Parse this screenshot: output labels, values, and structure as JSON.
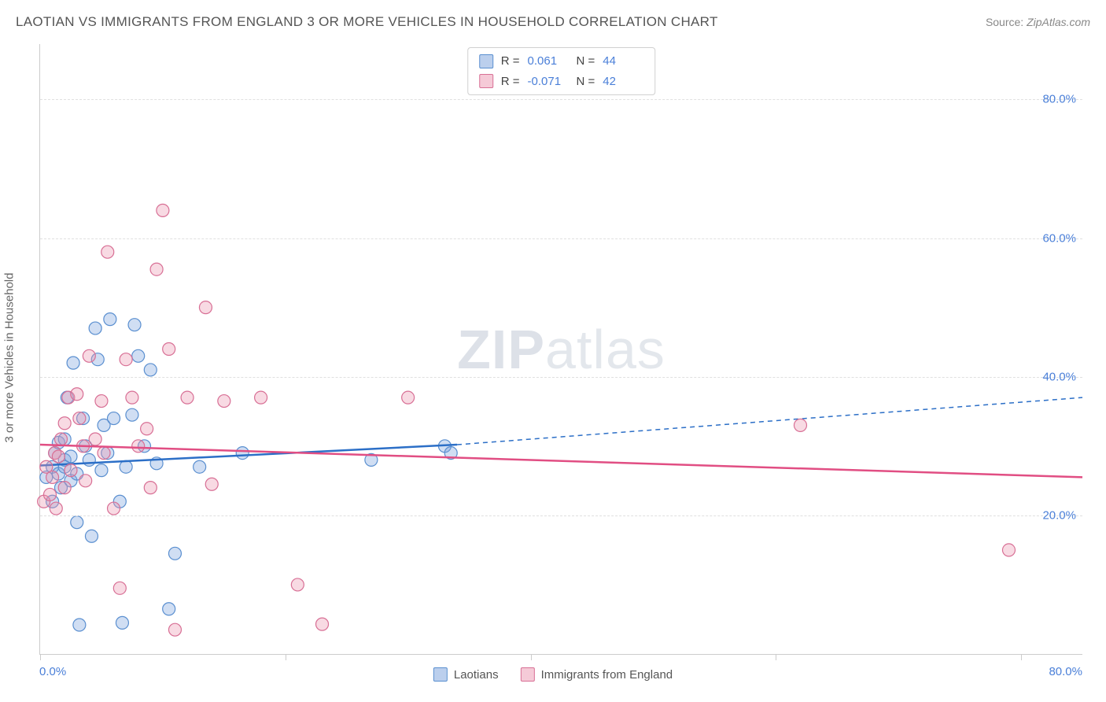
{
  "header": {
    "title": "LAOTIAN VS IMMIGRANTS FROM ENGLAND 3 OR MORE VEHICLES IN HOUSEHOLD CORRELATION CHART",
    "source_label": "Source:",
    "source_value": "ZipAtlas.com"
  },
  "ylabel": "3 or more Vehicles in Household",
  "watermark": {
    "bold": "ZIP",
    "light": "atlas"
  },
  "chart": {
    "type": "scatter",
    "xlim": [
      0,
      85
    ],
    "ylim": [
      0,
      88
    ],
    "grid_color": "#e0e0e0",
    "y_ticks": [
      20,
      40,
      60,
      80
    ],
    "y_tick_labels": [
      "20.0%",
      "40.0%",
      "60.0%",
      "80.0%"
    ],
    "x_ticks": [
      0,
      20,
      40,
      60,
      80
    ],
    "x_start_label": "0.0%",
    "x_end_label": "80.0%",
    "marker_radius": 8,
    "marker_stroke_width": 1.2,
    "series": [
      {
        "name": "Laotians",
        "fill": "rgba(120,160,220,0.35)",
        "stroke": "#5a8fd0",
        "points": [
          [
            0.5,
            25.5
          ],
          [
            1,
            27
          ],
          [
            1,
            22
          ],
          [
            1.2,
            29
          ],
          [
            1.5,
            30.5
          ],
          [
            1.5,
            26
          ],
          [
            1.7,
            24
          ],
          [
            2,
            28
          ],
          [
            2,
            31
          ],
          [
            2,
            27
          ],
          [
            2.2,
            37
          ],
          [
            2.5,
            25
          ],
          [
            2.5,
            28.5
          ],
          [
            2.7,
            42
          ],
          [
            3,
            19
          ],
          [
            3,
            26
          ],
          [
            3.2,
            4.2
          ],
          [
            3.5,
            34
          ],
          [
            3.7,
            30
          ],
          [
            4,
            28
          ],
          [
            4.2,
            17
          ],
          [
            4.5,
            47
          ],
          [
            4.7,
            42.5
          ],
          [
            5,
            26.5
          ],
          [
            5.2,
            33
          ],
          [
            5.5,
            29
          ],
          [
            5.7,
            48.3
          ],
          [
            6,
            34
          ],
          [
            6.5,
            22
          ],
          [
            6.7,
            4.5
          ],
          [
            7,
            27
          ],
          [
            7.5,
            34.5
          ],
          [
            7.7,
            47.5
          ],
          [
            8,
            43
          ],
          [
            8.5,
            30
          ],
          [
            9,
            41
          ],
          [
            9.5,
            27.5
          ],
          [
            10.5,
            6.5
          ],
          [
            11,
            14.5
          ],
          [
            13,
            27
          ],
          [
            16.5,
            29
          ],
          [
            27,
            28
          ],
          [
            33,
            30
          ],
          [
            33.5,
            29
          ]
        ],
        "regression": {
          "x1": 0,
          "y1": 27.2,
          "x2": 34,
          "y2": 30.2,
          "ext_x2": 85,
          "ext_y2": 37,
          "color": "#2c6fc7",
          "width": 2.5
        }
      },
      {
        "name": "Immigrants from England",
        "fill": "rgba(235,150,175,0.35)",
        "stroke": "#d86f95",
        "points": [
          [
            0.3,
            22
          ],
          [
            0.5,
            27
          ],
          [
            0.8,
            23
          ],
          [
            1,
            25.5
          ],
          [
            1.2,
            29
          ],
          [
            1.3,
            21
          ],
          [
            1.5,
            28.5
          ],
          [
            1.7,
            31
          ],
          [
            2,
            24
          ],
          [
            2,
            33.3
          ],
          [
            2.3,
            37
          ],
          [
            2.5,
            26.5
          ],
          [
            3,
            37.5
          ],
          [
            3.2,
            34
          ],
          [
            3.5,
            30
          ],
          [
            3.7,
            25
          ],
          [
            4,
            43
          ],
          [
            4.5,
            31
          ],
          [
            5,
            36.5
          ],
          [
            5.2,
            29
          ],
          [
            5.5,
            58
          ],
          [
            6,
            21
          ],
          [
            6.5,
            9.5
          ],
          [
            7,
            42.5
          ],
          [
            7.5,
            37
          ],
          [
            8,
            30
          ],
          [
            8.7,
            32.5
          ],
          [
            9,
            24
          ],
          [
            9.5,
            55.5
          ],
          [
            10,
            64
          ],
          [
            10.5,
            44
          ],
          [
            11,
            3.5
          ],
          [
            12,
            37
          ],
          [
            13.5,
            50
          ],
          [
            14,
            24.5
          ],
          [
            15,
            36.5
          ],
          [
            18,
            37
          ],
          [
            21,
            10
          ],
          [
            23,
            4.3
          ],
          [
            30,
            37
          ],
          [
            62,
            33
          ],
          [
            79,
            15
          ]
        ],
        "regression": {
          "x1": 0,
          "y1": 30.2,
          "x2": 85,
          "y2": 25.5,
          "color": "#e14e83",
          "width": 2.5
        }
      }
    ]
  },
  "stats": {
    "rows": [
      {
        "sw_fill": "rgba(120,160,220,0.5)",
        "sw_stroke": "#5a8fd0",
        "r_label": "R =",
        "r_value": "0.061",
        "n_label": "N =",
        "n_value": "44"
      },
      {
        "sw_fill": "rgba(235,150,175,0.5)",
        "sw_stroke": "#d86f95",
        "r_label": "R =",
        "r_value": "-0.071",
        "n_label": "N =",
        "n_value": "42"
      }
    ]
  },
  "legend": {
    "items": [
      {
        "label": "Laotians",
        "fill": "rgba(120,160,220,0.5)",
        "stroke": "#5a8fd0"
      },
      {
        "label": "Immigrants from England",
        "fill": "rgba(235,150,175,0.5)",
        "stroke": "#d86f95"
      }
    ]
  }
}
